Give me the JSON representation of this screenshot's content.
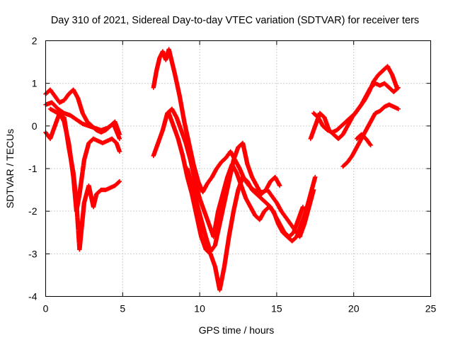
{
  "chart_data": {
    "type": "scatter",
    "title": "Day 310 of 2021, Sidereal Day-to-day VTEC variation (SDTVAR) for receiver ters",
    "xlabel": "GPS time / hours",
    "ylabel": "SDTVAR / TECUs",
    "xlim": [
      0,
      25
    ],
    "ylim": [
      -4,
      2
    ],
    "xticks": [
      "0",
      "5",
      "10",
      "15",
      "20",
      "25"
    ],
    "yticks": [
      "2",
      "1",
      "0",
      "-1",
      "-2",
      "-3",
      "-4"
    ],
    "xtick_values": [
      0,
      5,
      10,
      15,
      20,
      25
    ],
    "ytick_values": [
      2,
      1,
      0,
      -1,
      -2,
      -3,
      -4
    ],
    "grid": true,
    "marker": "+",
    "color": "#ff0000",
    "series": [
      {
        "x": [
          0.0,
          0.3,
          0.6,
          0.9,
          1.2,
          1.5,
          1.8,
          2.1,
          2.4,
          2.7,
          3.0,
          3.3,
          3.6,
          3.9,
          4.2,
          4.5,
          4.8
        ],
        "y": [
          0.75,
          0.85,
          0.7,
          0.55,
          0.6,
          0.75,
          0.85,
          0.65,
          0.3,
          0.1,
          0.0,
          -0.1,
          -0.15,
          -0.1,
          0.0,
          0.1,
          -0.2
        ]
      },
      {
        "x": [
          0.0,
          0.4,
          0.8,
          1.2,
          1.6,
          2.0,
          2.4,
          2.8,
          3.2,
          3.6,
          4.0,
          4.4,
          4.8
        ],
        "y": [
          0.5,
          0.55,
          0.4,
          0.3,
          0.25,
          0.15,
          0.05,
          0.0,
          -0.05,
          -0.1,
          -0.05,
          0.05,
          -0.3
        ]
      },
      {
        "x": [
          0.0,
          0.3,
          0.6,
          0.9,
          1.2,
          1.5,
          1.8,
          2.0,
          2.2,
          2.5,
          2.8,
          3.1,
          3.4,
          3.7,
          4.0,
          4.3,
          4.6,
          4.8
        ],
        "y": [
          -0.15,
          -0.3,
          0.0,
          0.3,
          0.1,
          -0.4,
          -1.2,
          -2.0,
          -1.6,
          -0.8,
          -0.4,
          -0.3,
          -0.35,
          -0.4,
          -0.35,
          -0.3,
          -0.4,
          -0.6
        ]
      },
      {
        "x": [
          0.3,
          0.8,
          1.2,
          1.5,
          1.8,
          2.0,
          2.2,
          2.5,
          2.8,
          3.1,
          3.3,
          3.6,
          3.9,
          4.2,
          4.5,
          4.8
        ],
        "y": [
          0.4,
          0.3,
          0.2,
          -0.5,
          -1.1,
          -1.8,
          -2.9,
          -1.8,
          -1.4,
          -1.9,
          -1.6,
          -1.5,
          -1.5,
          -1.45,
          -1.4,
          -1.3
        ]
      },
      {
        "x": [
          7.0,
          7.2,
          7.4,
          7.6,
          7.8,
          8.0,
          8.2,
          8.4,
          8.7,
          9.0,
          9.3,
          9.6,
          9.9,
          10.2,
          10.5,
          10.8,
          11.1,
          11.4,
          11.7,
          12.0,
          12.3,
          12.6,
          12.9,
          13.2,
          13.5,
          13.8,
          14.1,
          14.4,
          14.7,
          15.0,
          15.3,
          15.6,
          15.9,
          16.2,
          16.5,
          16.8,
          17.1,
          17.4
        ],
        "y": [
          0.9,
          1.3,
          1.6,
          1.75,
          1.55,
          1.8,
          1.5,
          1.2,
          0.7,
          0.1,
          -0.4,
          -0.9,
          -1.3,
          -1.55,
          -1.35,
          -1.2,
          -1.0,
          -0.85,
          -0.75,
          -0.6,
          -0.8,
          -1.0,
          -1.25,
          -1.4,
          -1.5,
          -1.55,
          -1.55,
          -1.5,
          -1.65,
          -1.8,
          -2.0,
          -2.15,
          -2.3,
          -2.45,
          -2.6,
          -2.3,
          -1.9,
          -1.5
        ]
      },
      {
        "x": [
          7.0,
          7.3,
          7.6,
          7.9,
          8.2,
          8.5,
          8.8,
          9.1,
          9.4,
          9.7,
          10.0,
          10.3,
          10.6,
          10.9,
          11.2,
          11.5,
          11.8,
          12.1,
          12.4,
          12.7,
          13.0,
          13.3,
          13.6,
          13.9,
          14.2,
          14.5,
          14.8,
          15.1,
          15.4,
          15.7,
          16.0,
          16.3,
          16.6,
          16.9,
          17.2,
          17.5
        ],
        "y": [
          -0.7,
          -0.4,
          -0.1,
          0.3,
          0.4,
          0.2,
          -0.1,
          -0.4,
          -0.8,
          -1.3,
          -1.7,
          -2.0,
          -2.3,
          -2.6,
          -2.0,
          -1.6,
          -1.2,
          -0.9,
          -1.1,
          -1.4,
          -1.7,
          -1.9,
          -2.1,
          -2.2,
          -2.0,
          -1.9,
          -2.0,
          -2.3,
          -2.5,
          -2.6,
          -2.7,
          -2.6,
          -2.3,
          -2.0,
          -1.6,
          -1.2
        ]
      },
      {
        "x": [
          8.0,
          8.3,
          8.6,
          8.9,
          9.2,
          9.5,
          9.8,
          10.1,
          10.4,
          10.7,
          11.0,
          11.3,
          11.6,
          11.9,
          12.2,
          12.5,
          12.8,
          13.1,
          13.4,
          13.7,
          14.0,
          14.3,
          14.6,
          14.9,
          15.2,
          15.5,
          15.8,
          16.1,
          16.4,
          16.7
        ],
        "y": [
          0.3,
          0.0,
          -0.3,
          -0.7,
          -1.2,
          -1.6,
          -2.1,
          -2.6,
          -2.9,
          -3.0,
          -3.3,
          -3.85,
          -3.3,
          -2.6,
          -2.0,
          -1.5,
          -1.2,
          -1.3,
          -1.5,
          -1.6,
          -1.7,
          -1.8,
          -1.9,
          -2.1,
          -2.3,
          -2.5,
          -2.6,
          -2.5,
          -2.2,
          -1.9
        ]
      },
      {
        "x": [
          9.2,
          9.5,
          9.8,
          10.1,
          10.4,
          10.7,
          11.0,
          11.3,
          11.6,
          11.9,
          12.2,
          12.5,
          12.8,
          13.1,
          13.4,
          13.7,
          14.0,
          14.3,
          14.6,
          14.9,
          15.2
        ],
        "y": [
          -1.0,
          -1.4,
          -1.8,
          -2.2,
          -2.6,
          -2.95,
          -2.8,
          -2.3,
          -1.8,
          -1.3,
          -0.8,
          -0.5,
          -0.4,
          -0.9,
          -1.2,
          -1.4,
          -1.6,
          -1.5,
          -1.3,
          -1.2,
          -1.4
        ]
      },
      {
        "x": [
          17.4,
          17.7,
          18.0,
          18.3,
          18.6,
          18.9,
          19.2,
          19.5,
          19.8,
          20.1,
          20.4,
          20.7,
          21.0,
          21.3,
          21.6,
          21.9,
          22.2,
          22.5,
          22.8
        ],
        "y": [
          0.3,
          0.2,
          0.0,
          -0.1,
          -0.15,
          -0.1,
          0.0,
          0.1,
          0.2,
          0.3,
          0.45,
          0.6,
          0.8,
          1.05,
          1.2,
          1.3,
          1.4,
          1.2,
          0.9
        ]
      },
      {
        "x": [
          17.2,
          17.5,
          17.8,
          18.1,
          18.4,
          18.7,
          19.0,
          19.3,
          19.6,
          19.9,
          20.2,
          20.5,
          20.8,
          21.1,
          21.4,
          21.7,
          22.0,
          22.3,
          22.6,
          22.9
        ],
        "y": [
          -0.3,
          0.0,
          0.3,
          0.2,
          -0.1,
          -0.2,
          -0.3,
          -0.2,
          0.0,
          0.2,
          0.35,
          0.5,
          0.7,
          0.9,
          1.0,
          0.95,
          1.0,
          0.9,
          0.8,
          0.9
        ]
      },
      {
        "x": [
          19.3,
          19.6,
          19.9,
          20.2,
          20.5,
          20.8,
          21.1,
          21.4,
          21.7,
          22.0,
          22.3,
          22.6,
          22.9
        ],
        "y": [
          -0.95,
          -0.85,
          -0.7,
          -0.5,
          -0.3,
          -0.1,
          0.1,
          0.3,
          0.35,
          0.45,
          0.5,
          0.45,
          0.4
        ]
      },
      {
        "x": [
          20.2,
          20.5,
          20.8,
          21.1
        ],
        "y": [
          -0.3,
          -0.2,
          -0.3,
          -0.45
        ]
      }
    ]
  }
}
